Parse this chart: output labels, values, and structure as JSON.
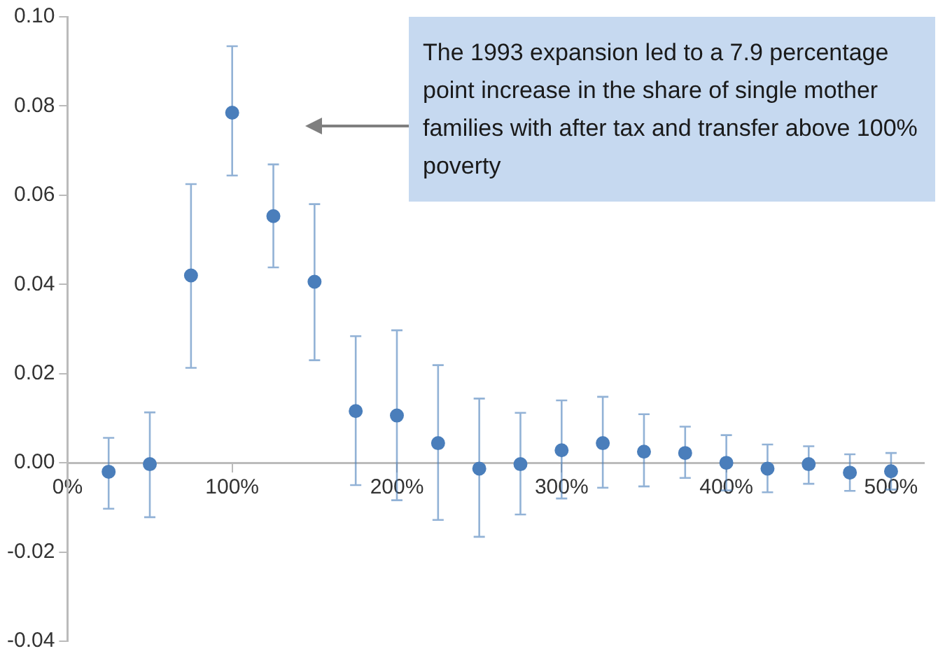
{
  "chart_data": {
    "type": "scatter",
    "x": [
      25,
      50,
      75,
      100,
      125,
      150,
      175,
      200,
      225,
      250,
      275,
      300,
      325,
      350,
      375,
      400,
      425,
      450,
      475,
      500
    ],
    "series": [
      {
        "color": "#4a7ebb",
        "values": [
          -0.002,
          -0.0003,
          0.042,
          0.0785,
          0.0553,
          0.0406,
          0.0116,
          0.0106,
          0.0044,
          -0.0013,
          -0.0003,
          0.0028,
          0.0044,
          0.0025,
          0.0022,
          0.0,
          -0.0013,
          -0.0003,
          -0.0022,
          -0.0019
        ],
        "errors": [
          [
            -0.0103,
            0.0056
          ],
          [
            -0.0122,
            0.0113
          ],
          [
            0.0213,
            0.0625
          ],
          [
            0.0644,
            0.0934
          ],
          [
            0.0438,
            0.0669
          ],
          [
            0.023,
            0.058
          ],
          [
            -0.005,
            0.0284
          ],
          [
            -0.0084,
            0.0297
          ],
          [
            -0.0128,
            0.0219
          ],
          [
            -0.0166,
            0.0144
          ],
          [
            -0.0116,
            0.0112
          ],
          [
            -0.008,
            0.014
          ],
          [
            -0.0056,
            0.0148
          ],
          [
            -0.0053,
            0.0109
          ],
          [
            -0.0034,
            0.0081
          ],
          [
            -0.0062,
            0.0062
          ],
          [
            -0.0066,
            0.0041
          ],
          [
            -0.0047,
            0.0037
          ],
          [
            -0.0063,
            0.0019
          ],
          [
            -0.006,
            0.0022
          ]
        ]
      }
    ],
    "xlim": [
      0,
      520
    ],
    "xticks": [
      {
        "value": 0,
        "label": "0%"
      },
      {
        "value": 100,
        "label": "100%"
      },
      {
        "value": 200,
        "label": "200%"
      },
      {
        "value": 300,
        "label": "300%"
      },
      {
        "value": 400,
        "label": "400%"
      },
      {
        "value": 500,
        "label": "500%"
      }
    ],
    "ylim": [
      -0.04,
      0.1
    ],
    "yticks": [
      {
        "value": -0.04,
        "label": "-0.04"
      },
      {
        "value": -0.02,
        "label": "-0.02"
      },
      {
        "value": 0,
        "label": "0.00"
      },
      {
        "value": 0.02,
        "label": "0.02"
      },
      {
        "value": 0.04,
        "label": "0.04"
      },
      {
        "value": 0.06,
        "label": "0.06"
      },
      {
        "value": 0.08,
        "label": "0.08"
      },
      {
        "value": 0.1,
        "label": "0.10"
      }
    ],
    "grid": false,
    "legend": false,
    "marker": "circle",
    "annotations": [
      "The 1993 expansion led to a 7.9 percentage point increase in the share of single mother families with after tax and transfer above 100% poverty"
    ]
  }
}
